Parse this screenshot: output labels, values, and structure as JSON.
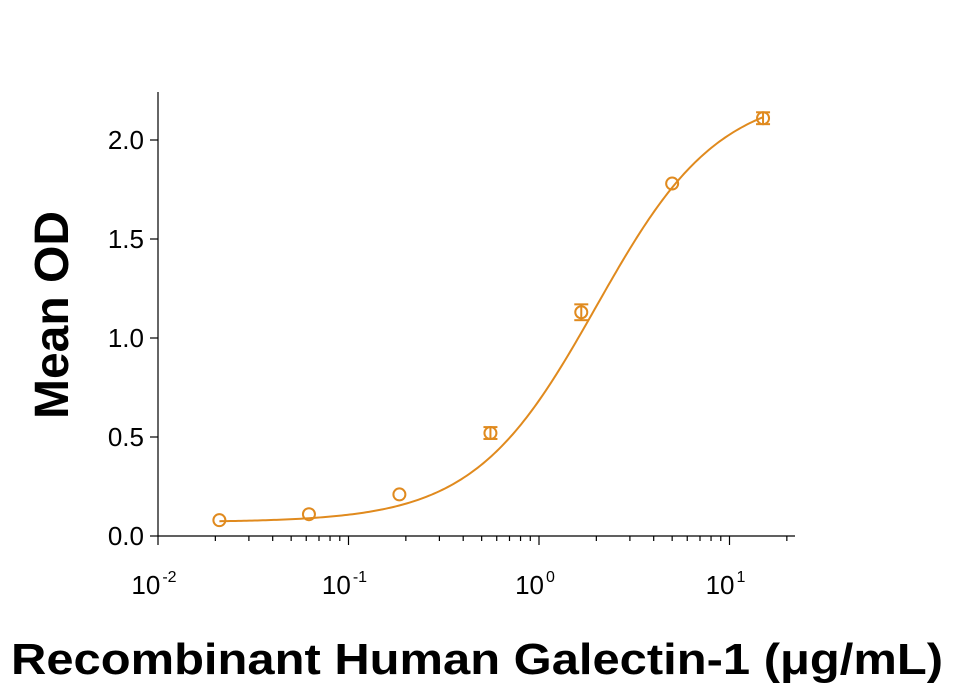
{
  "chart_data": {
    "type": "scatter",
    "xlabel": "Recombinant Human Galectin-1 (μg/mL)",
    "ylabel": "Mean OD",
    "xscale": "log",
    "xlim": [
      0.01,
      20
    ],
    "ylim": [
      0,
      2.2
    ],
    "x_ticks": [
      {
        "base": "10",
        "exp": "-2",
        "value": 0.01
      },
      {
        "base": "10",
        "exp": "-1",
        "value": 0.1
      },
      {
        "base": "10",
        "exp": "0",
        "value": 1
      },
      {
        "base": "10",
        "exp": "1",
        "value": 10
      }
    ],
    "y_ticks": [
      "0.0",
      "0.5",
      "1.0",
      "1.5",
      "2.0"
    ],
    "grid": false,
    "legend": "none",
    "color": "#E08A1E",
    "series": [
      {
        "x": [
          0.021,
          0.062,
          0.185,
          0.556,
          1.667,
          5.0,
          15.0
        ],
        "y": [
          0.08,
          0.11,
          0.21,
          0.52,
          1.13,
          1.78,
          2.11
        ],
        "error": [
          0.01,
          0.01,
          0.01,
          0.03,
          0.04,
          0.02,
          0.03
        ]
      }
    ],
    "fit": {
      "model": "4PL",
      "bottom": 0.07,
      "top": 2.25,
      "ec50": 2.0,
      "hill": 1.35
    }
  }
}
